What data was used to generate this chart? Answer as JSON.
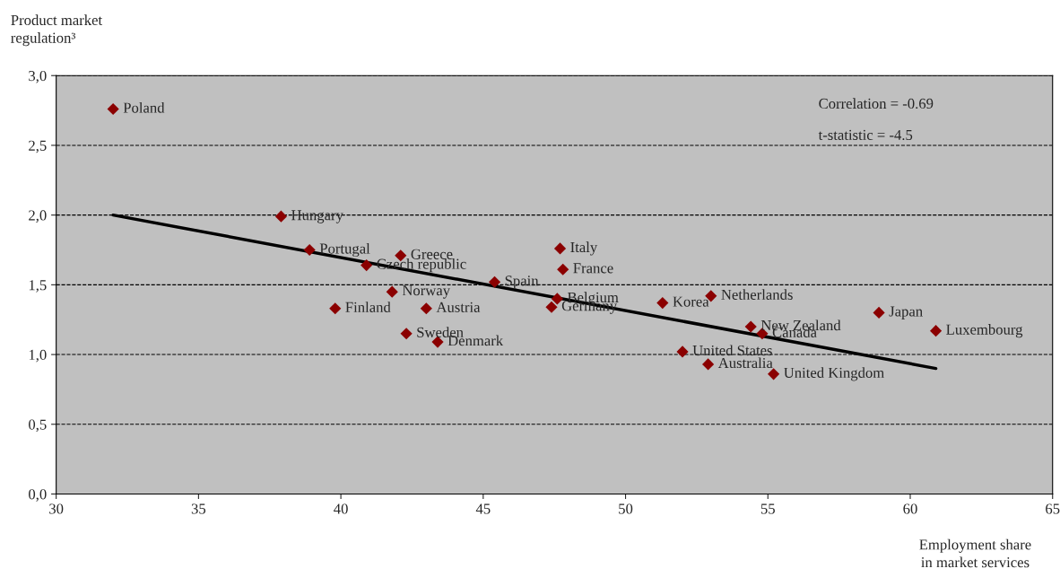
{
  "chart_data": {
    "type": "scatter",
    "xlabel": "Employment share\nin market services",
    "ylabel": "Product market\nregulation³",
    "xlim": [
      30,
      65
    ],
    "xticks": [
      30,
      35,
      40,
      45,
      50,
      55,
      60,
      65
    ],
    "ylim": [
      0,
      3
    ],
    "yticks": [
      {
        "value": 0,
        "label": "0,0"
      },
      {
        "value": 0.5,
        "label": "0,5"
      },
      {
        "value": 1,
        "label": "1,0"
      },
      {
        "value": 1.5,
        "label": "1,5"
      },
      {
        "value": 2,
        "label": "2,0"
      },
      {
        "value": 2.5,
        "label": "2,5"
      },
      {
        "value": 3,
        "label": "3,0"
      }
    ],
    "grid": "y",
    "legend": false,
    "series": [
      {
        "marker": "diamond",
        "color": "#8b0000",
        "x": [
          32.0,
          37.9,
          38.9,
          40.9,
          42.1,
          41.8,
          39.8,
          43.0,
          42.3,
          43.4,
          45.4,
          47.7,
          47.8,
          47.6,
          47.4,
          51.3,
          53.0,
          52.0,
          52.9,
          54.4,
          54.8,
          55.2,
          58.9,
          60.9
        ],
        "values": [
          2.76,
          1.99,
          1.75,
          1.64,
          1.71,
          1.45,
          1.33,
          1.33,
          1.15,
          1.09,
          1.52,
          1.76,
          1.61,
          1.4,
          1.34,
          1.37,
          1.42,
          1.02,
          0.93,
          1.2,
          1.15,
          0.86,
          1.3,
          1.17
        ]
      },
      {
        "type": "line",
        "line_style": "solid",
        "color": "#000000",
        "x": [
          32.0,
          60.9
        ],
        "values": [
          2.0,
          0.9
        ]
      }
    ],
    "annotations": [
      {
        "text": "Poland",
        "x": 32.0,
        "y": 2.76
      },
      {
        "text": "Hungary",
        "x": 37.9,
        "y": 1.99
      },
      {
        "text": "Portugal",
        "x": 38.9,
        "y": 1.75
      },
      {
        "text": "Czech republic",
        "x": 40.9,
        "y": 1.64
      },
      {
        "text": "Greece",
        "x": 42.1,
        "y": 1.71
      },
      {
        "text": "Norway",
        "x": 41.8,
        "y": 1.45
      },
      {
        "text": "Finland",
        "x": 39.8,
        "y": 1.33
      },
      {
        "text": "Austria",
        "x": 43.0,
        "y": 1.33
      },
      {
        "text": "Sweden",
        "x": 42.3,
        "y": 1.15
      },
      {
        "text": "Denmark",
        "x": 43.4,
        "y": 1.09
      },
      {
        "text": "Spain",
        "x": 45.4,
        "y": 1.52
      },
      {
        "text": "Italy",
        "x": 47.7,
        "y": 1.76
      },
      {
        "text": "France",
        "x": 47.8,
        "y": 1.61
      },
      {
        "text": "Belgium",
        "x": 47.6,
        "y": 1.4
      },
      {
        "text": "Germany",
        "x": 47.4,
        "y": 1.34
      },
      {
        "text": "Korea",
        "x": 51.3,
        "y": 1.37
      },
      {
        "text": "Netherlands",
        "x": 53.0,
        "y": 1.42
      },
      {
        "text": "United States",
        "x": 52.0,
        "y": 1.02
      },
      {
        "text": "Australia",
        "x": 52.9,
        "y": 0.93
      },
      {
        "text": "New Zealand",
        "x": 54.4,
        "y": 1.2
      },
      {
        "text": "Canada",
        "x": 54.8,
        "y": 1.15
      },
      {
        "text": "United Kingdom",
        "x": 55.2,
        "y": 0.86
      },
      {
        "text": "Japan",
        "x": 58.9,
        "y": 1.3
      },
      {
        "text": "Luxembourg",
        "x": 60.9,
        "y": 1.17
      },
      "Correlation = -0.69",
      "t-statistic = -4.5"
    ]
  }
}
